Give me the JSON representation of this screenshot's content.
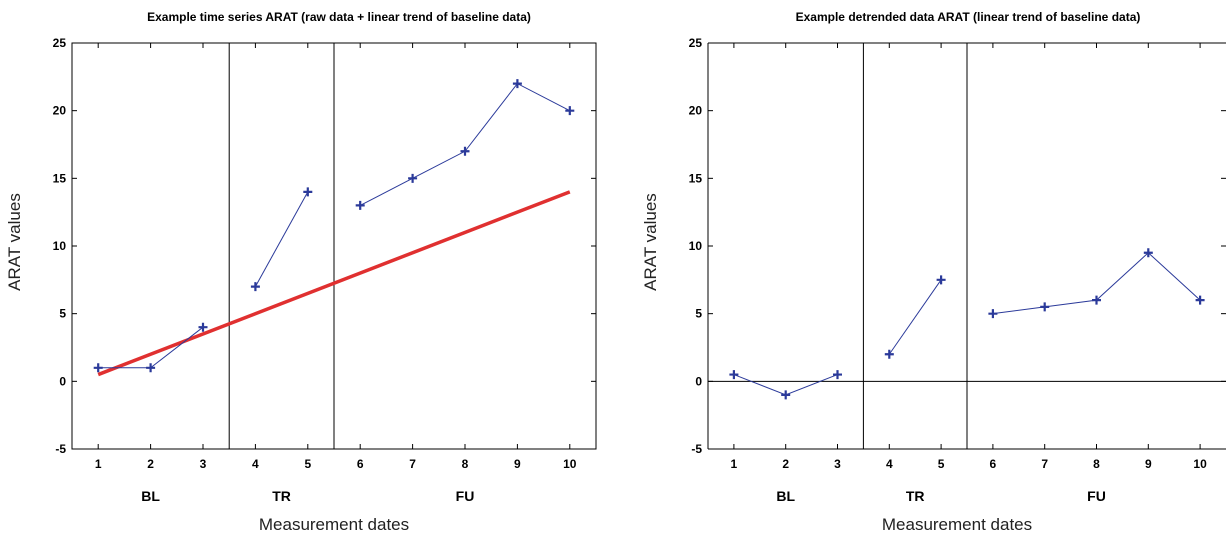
{
  "chart_data": [
    {
      "type": "line",
      "title": "Example time series ARAT (raw data + linear trend of baseline data)",
      "xlabel": "Measurement dates",
      "ylabel": "ARAT values",
      "xlim": [
        0.5,
        10.5
      ],
      "ylim": [
        -5,
        25
      ],
      "x_ticks": [
        1,
        2,
        3,
        4,
        5,
        6,
        7,
        8,
        9,
        10
      ],
      "y_ticks": [
        -5,
        0,
        5,
        10,
        15,
        20,
        25
      ],
      "phase_boundaries": [
        3.5,
        5.5
      ],
      "phases": [
        {
          "label": "BL",
          "x": 2
        },
        {
          "label": "TR",
          "x": 4.5
        },
        {
          "label": "FU",
          "x": 8
        }
      ],
      "grid": false,
      "series": [
        {
          "segment": "BL",
          "x": [
            1,
            2,
            3
          ],
          "y": [
            1,
            1,
            4
          ],
          "color": "#2b3a9a",
          "marker": "plus"
        },
        {
          "segment": "TR",
          "x": [
            4,
            5
          ],
          "y": [
            7,
            14
          ],
          "color": "#2b3a9a",
          "marker": "plus"
        },
        {
          "segment": "FU",
          "x": [
            6,
            7,
            8,
            9,
            10
          ],
          "y": [
            13,
            15,
            17,
            22,
            20
          ],
          "color": "#2b3a9a",
          "marker": "plus"
        }
      ],
      "trend_line": {
        "x": [
          1,
          10
        ],
        "y": [
          0.5,
          14
        ],
        "color": "#e03030"
      }
    },
    {
      "type": "line",
      "title": "Example detrended data ARAT (linear trend of baseline data)",
      "xlabel": "Measurement dates",
      "ylabel": "ARAT values",
      "xlim": [
        0.5,
        10.5
      ],
      "ylim": [
        -5,
        25
      ],
      "x_ticks": [
        1,
        2,
        3,
        4,
        5,
        6,
        7,
        8,
        9,
        10
      ],
      "y_ticks": [
        -5,
        0,
        5,
        10,
        15,
        20,
        25
      ],
      "phase_boundaries": [
        3.5,
        5.5
      ],
      "zero_line": true,
      "phases": [
        {
          "label": "BL",
          "x": 2
        },
        {
          "label": "TR",
          "x": 4.5
        },
        {
          "label": "FU",
          "x": 8
        }
      ],
      "grid": false,
      "series": [
        {
          "segment": "BL",
          "x": [
            1,
            2,
            3
          ],
          "y": [
            0.5,
            -1,
            0.5
          ],
          "color": "#2b3a9a",
          "marker": "plus"
        },
        {
          "segment": "TR",
          "x": [
            4,
            5
          ],
          "y": [
            2,
            7.5
          ],
          "color": "#2b3a9a",
          "marker": "plus"
        },
        {
          "segment": "FU",
          "x": [
            6,
            7,
            8,
            9,
            10
          ],
          "y": [
            5,
            5.5,
            6,
            9.5,
            6
          ],
          "color": "#2b3a9a",
          "marker": "plus"
        }
      ]
    }
  ]
}
